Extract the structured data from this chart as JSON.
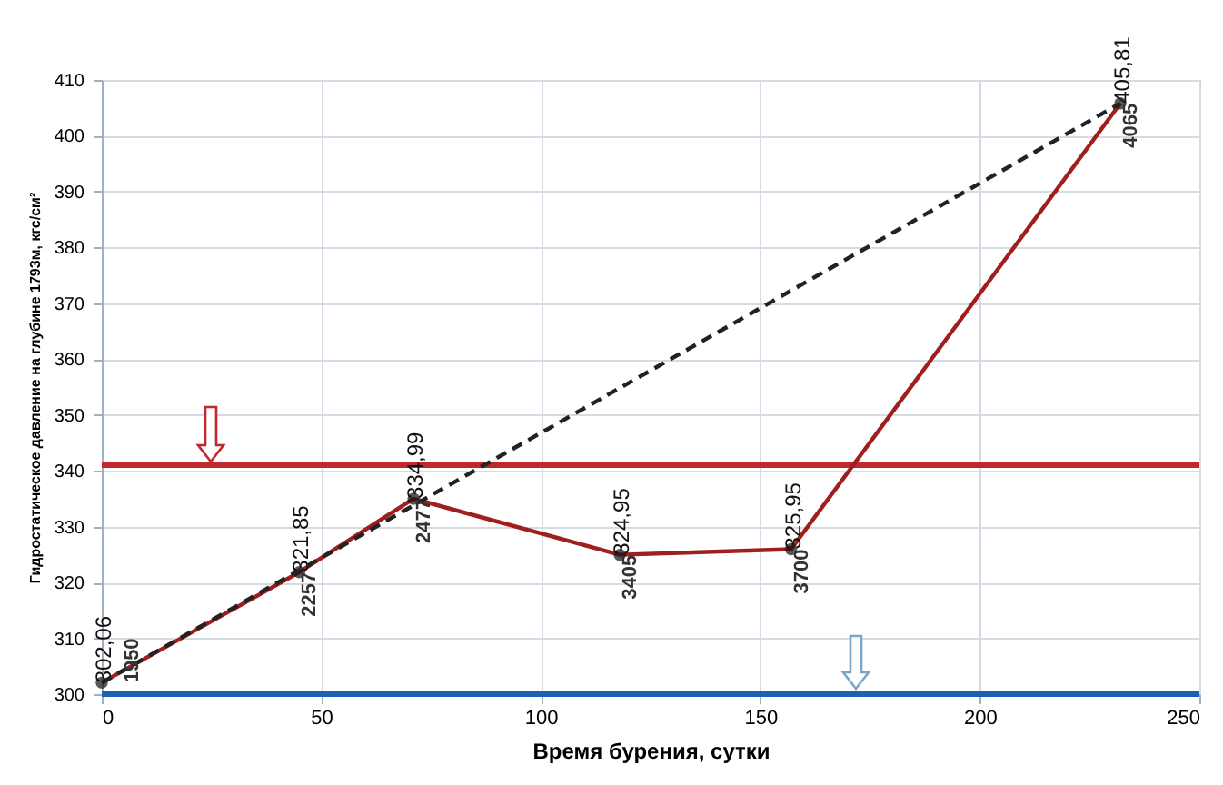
{
  "chart_data": {
    "type": "line",
    "xlabel": "Время бурения, сутки",
    "ylabel": "Гидростатическое давление    на глубине 1793м, кгс/см²",
    "xlim": [
      0,
      250
    ],
    "xticks": [
      0,
      50,
      100,
      150,
      200,
      250
    ],
    "ylim": [
      300,
      410
    ],
    "yticks": [
      300,
      310,
      320,
      330,
      340,
      350,
      360,
      370,
      380,
      390,
      400,
      410
    ],
    "grid": true,
    "series": [
      {
        "color": "#a01e1e",
        "x": [
          0,
          45,
          71,
          118,
          157,
          232
        ],
        "values": [
          302.06,
          321.85,
          334.99,
          324.95,
          325.95,
          405.81
        ],
        "value_labels": [
          "302,06",
          "321,85",
          "334,99",
          "324,95",
          "325,95",
          "405,81"
        ],
        "marker": "circle",
        "line_style": "solid"
      },
      {
        "type": "line",
        "color": "#222222",
        "x": [
          0,
          232
        ],
        "values": [
          302.06,
          405.81
        ],
        "marker": "none",
        "line_style": "dashed"
      }
    ],
    "ref_lines": [
      {
        "axis": "y",
        "value": 341,
        "color": "#c0282d"
      },
      {
        "axis": "y",
        "value": 300,
        "color": "#1f5fb4"
      }
    ],
    "annotations": [
      {
        "text": "1950",
        "x": 0,
        "y": 302.06
      },
      {
        "text": "2257",
        "x": 45,
        "y": 321.85
      },
      {
        "text": "2477",
        "x": 71,
        "y": 334.99
      },
      {
        "text": "3405",
        "x": 118,
        "y": 324.95
      },
      {
        "text": "3700",
        "x": 157,
        "y": 325.95
      },
      {
        "text": "4065",
        "x": 232,
        "y": 405.81
      }
    ]
  }
}
